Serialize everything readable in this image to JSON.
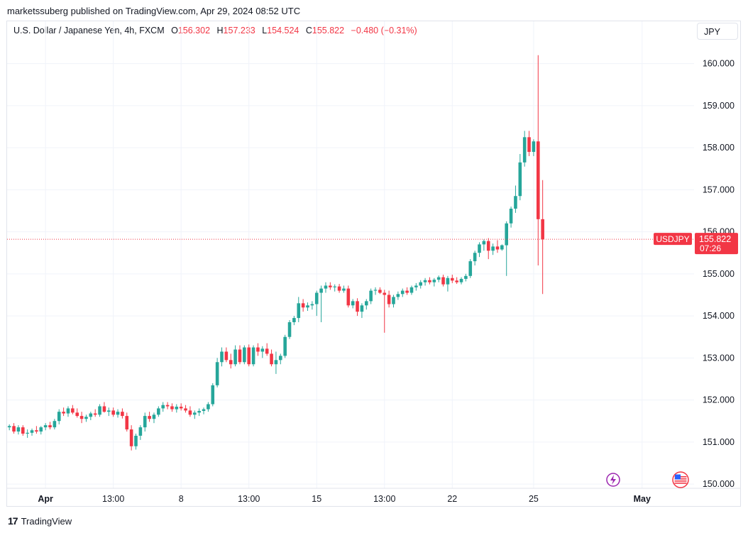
{
  "attribution": "marketssuberg published on TradingView.com, Apr 29, 2024 08:52 UTC",
  "legend": {
    "symbol": "U.S. Dollar / Japanese Yen, 4h, FXCM",
    "o_label": "O",
    "o": "156.302",
    "h_label": "H",
    "h": "157.233",
    "l_label": "L",
    "l": "154.524",
    "c_label": "C",
    "c": "155.822",
    "change": "−0.480 (−0.31%)"
  },
  "currency_button": "JPY",
  "footer": {
    "brand": "TradingView",
    "logo_mark": "17"
  },
  "colors": {
    "up": "#26a69a",
    "down": "#f23645",
    "grid": "#f0f3fa",
    "text": "#131722"
  },
  "chart_data": {
    "type": "candlestick",
    "symbol": "USDJPY",
    "timeframe": "4h",
    "ylim": [
      149.9,
      160.5
    ],
    "y_ticks": [
      "150.000",
      "151.000",
      "152.000",
      "153.000",
      "154.000",
      "155.000",
      "156.000",
      "157.000",
      "158.000",
      "159.000",
      "160.000"
    ],
    "x_ticks": [
      {
        "label": "Apr",
        "bar": 8,
        "bold": true
      },
      {
        "label": "13:00",
        "bar": 23,
        "bold": false
      },
      {
        "label": "8",
        "bar": 38,
        "bold": false
      },
      {
        "label": "13:00",
        "bar": 53,
        "bold": false
      },
      {
        "label": "15",
        "bar": 68,
        "bold": false
      },
      {
        "label": "13:00",
        "bar": 83,
        "bold": false
      },
      {
        "label": "22",
        "bar": 98,
        "bold": false
      },
      {
        "label": "25",
        "bar": 116,
        "bold": false
      },
      {
        "label": "May",
        "bar": 140,
        "bold": true
      }
    ],
    "last_price": {
      "symbol": "USDJPY",
      "price": "155.822",
      "countdown": "07:26",
      "value": 155.822
    },
    "icons": [
      "lightning-icon",
      "us-flag-icon"
    ],
    "ohlc": [
      [
        151.35,
        151.42,
        151.28,
        151.38
      ],
      [
        151.38,
        151.45,
        151.2,
        151.25
      ],
      [
        151.25,
        151.4,
        151.18,
        151.35
      ],
      [
        151.35,
        151.4,
        151.15,
        151.2
      ],
      [
        151.2,
        151.3,
        151.1,
        151.22
      ],
      [
        151.22,
        151.32,
        151.15,
        151.28
      ],
      [
        151.28,
        151.38,
        151.2,
        151.25
      ],
      [
        151.25,
        151.38,
        151.18,
        151.35
      ],
      [
        151.35,
        151.45,
        151.28,
        151.4
      ],
      [
        151.4,
        151.48,
        151.3,
        151.35
      ],
      [
        151.35,
        151.55,
        151.3,
        151.5
      ],
      [
        151.5,
        151.78,
        151.42,
        151.72
      ],
      [
        151.72,
        151.82,
        151.62,
        151.68
      ],
      [
        151.68,
        151.85,
        151.6,
        151.8
      ],
      [
        151.8,
        151.88,
        151.66,
        151.7
      ],
      [
        151.7,
        151.8,
        151.58,
        151.62
      ],
      [
        151.62,
        151.72,
        151.45,
        151.55
      ],
      [
        151.55,
        151.65,
        151.48,
        151.6
      ],
      [
        151.6,
        151.72,
        151.52,
        151.68
      ],
      [
        151.68,
        151.78,
        151.6,
        151.65
      ],
      [
        151.65,
        151.9,
        151.6,
        151.85
      ],
      [
        151.85,
        151.95,
        151.7,
        151.72
      ],
      [
        151.72,
        151.82,
        151.62,
        151.75
      ],
      [
        151.75,
        151.82,
        151.6,
        151.65
      ],
      [
        151.65,
        151.78,
        151.58,
        151.72
      ],
      [
        151.72,
        151.8,
        151.56,
        151.62
      ],
      [
        151.62,
        151.7,
        151.25,
        151.3
      ],
      [
        151.3,
        151.4,
        150.8,
        150.9
      ],
      [
        150.9,
        151.2,
        150.82,
        151.15
      ],
      [
        151.15,
        151.4,
        151.05,
        151.35
      ],
      [
        151.35,
        151.7,
        151.25,
        151.62
      ],
      [
        151.62,
        151.72,
        151.48,
        151.55
      ],
      [
        151.55,
        151.7,
        151.45,
        151.65
      ],
      [
        151.65,
        151.85,
        151.6,
        151.8
      ],
      [
        151.8,
        151.95,
        151.72,
        151.88
      ],
      [
        151.88,
        151.95,
        151.78,
        151.85
      ],
      [
        151.85,
        151.92,
        151.72,
        151.78
      ],
      [
        151.78,
        151.9,
        151.7,
        151.84
      ],
      [
        151.84,
        151.92,
        151.75,
        151.8
      ],
      [
        151.8,
        151.88,
        151.7,
        151.75
      ],
      [
        151.75,
        151.85,
        151.6,
        151.65
      ],
      [
        151.65,
        151.75,
        151.55,
        151.7
      ],
      [
        151.7,
        151.8,
        151.62,
        151.74
      ],
      [
        151.74,
        151.82,
        151.66,
        151.78
      ],
      [
        151.78,
        151.95,
        151.72,
        151.9
      ],
      [
        151.9,
        152.4,
        151.85,
        152.35
      ],
      [
        152.35,
        153.0,
        152.3,
        152.9
      ],
      [
        152.9,
        153.25,
        152.8,
        153.15
      ],
      [
        153.15,
        153.25,
        152.9,
        152.95
      ],
      [
        152.95,
        153.1,
        152.75,
        152.85
      ],
      [
        152.85,
        153.3,
        152.8,
        153.2
      ],
      [
        153.2,
        153.3,
        152.85,
        152.9
      ],
      [
        152.9,
        153.3,
        152.85,
        153.25
      ],
      [
        153.25,
        153.32,
        152.8,
        152.85
      ],
      [
        152.85,
        153.3,
        152.8,
        153.25
      ],
      [
        153.25,
        153.35,
        153.05,
        153.15
      ],
      [
        153.15,
        153.28,
        153.0,
        153.22
      ],
      [
        153.22,
        153.35,
        153.05,
        153.1
      ],
      [
        153.1,
        153.2,
        152.8,
        152.85
      ],
      [
        152.85,
        153.15,
        152.62,
        152.95
      ],
      [
        152.95,
        153.1,
        152.85,
        153.05
      ],
      [
        153.05,
        153.55,
        153.0,
        153.5
      ],
      [
        153.5,
        153.9,
        153.45,
        153.85
      ],
      [
        153.85,
        154.0,
        153.78,
        153.95
      ],
      [
        153.95,
        154.45,
        153.85,
        154.3
      ],
      [
        154.3,
        154.4,
        154.1,
        154.2
      ],
      [
        154.2,
        154.32,
        154.12,
        154.25
      ],
      [
        154.25,
        154.35,
        154.15,
        154.28
      ],
      [
        154.28,
        154.6,
        154.0,
        154.55
      ],
      [
        154.55,
        154.72,
        153.85,
        154.65
      ],
      [
        154.65,
        154.8,
        154.55,
        154.72
      ],
      [
        154.72,
        154.8,
        154.62,
        154.68
      ],
      [
        154.68,
        154.75,
        154.58,
        154.7
      ],
      [
        154.7,
        154.76,
        154.55,
        154.6
      ],
      [
        154.6,
        154.72,
        154.55,
        154.65
      ],
      [
        154.65,
        154.72,
        154.2,
        154.25
      ],
      [
        154.25,
        154.4,
        154.18,
        154.35
      ],
      [
        154.35,
        154.42,
        154.0,
        154.1
      ],
      [
        154.1,
        154.3,
        153.95,
        154.25
      ],
      [
        154.25,
        154.4,
        154.15,
        154.35
      ],
      [
        154.35,
        154.65,
        154.28,
        154.6
      ],
      [
        154.6,
        154.68,
        154.5,
        154.62
      ],
      [
        154.62,
        154.68,
        154.52,
        154.55
      ],
      [
        154.55,
        154.62,
        153.6,
        154.5
      ],
      [
        154.5,
        154.6,
        154.2,
        154.28
      ],
      [
        154.28,
        154.5,
        154.2,
        154.45
      ],
      [
        154.45,
        154.58,
        154.38,
        154.52
      ],
      [
        154.52,
        154.65,
        154.45,
        154.6
      ],
      [
        154.6,
        154.68,
        154.5,
        154.55
      ],
      [
        154.55,
        154.72,
        154.5,
        154.68
      ],
      [
        154.68,
        154.78,
        154.6,
        154.72
      ],
      [
        154.72,
        154.85,
        154.65,
        154.8
      ],
      [
        154.8,
        154.9,
        154.72,
        154.85
      ],
      [
        154.85,
        154.92,
        154.75,
        154.8
      ],
      [
        154.8,
        154.9,
        154.7,
        154.86
      ],
      [
        154.86,
        154.96,
        154.8,
        154.92
      ],
      [
        154.92,
        154.98,
        154.7,
        154.75
      ],
      [
        154.75,
        154.95,
        154.58,
        154.9
      ],
      [
        154.9,
        154.98,
        154.78,
        154.84
      ],
      [
        154.84,
        154.92,
        154.76,
        154.8
      ],
      [
        154.8,
        154.92,
        154.75,
        154.88
      ],
      [
        154.88,
        155.0,
        154.82,
        154.95
      ],
      [
        154.95,
        155.35,
        154.9,
        155.3
      ],
      [
        155.3,
        155.55,
        155.2,
        155.5
      ],
      [
        155.5,
        155.75,
        155.4,
        155.7
      ],
      [
        155.7,
        155.82,
        155.55,
        155.78
      ],
      [
        155.78,
        155.85,
        155.35,
        155.55
      ],
      [
        155.55,
        155.72,
        155.45,
        155.65
      ],
      [
        155.65,
        155.8,
        155.5,
        155.58
      ],
      [
        155.58,
        155.7,
        155.55,
        155.68
      ],
      [
        155.68,
        156.25,
        154.95,
        156.2
      ],
      [
        156.2,
        156.6,
        156.1,
        156.55
      ],
      [
        156.55,
        157.1,
        156.45,
        156.85
      ],
      [
        156.85,
        157.85,
        156.75,
        157.65
      ],
      [
        157.65,
        158.4,
        157.55,
        158.25
      ],
      [
        158.25,
        158.4,
        157.8,
        157.9
      ],
      [
        157.9,
        158.2,
        157.8,
        158.15
      ],
      [
        158.15,
        160.2,
        155.2,
        156.3
      ],
      [
        156.3,
        157.23,
        154.52,
        155.82
      ]
    ],
    "n_slots": 152
  }
}
